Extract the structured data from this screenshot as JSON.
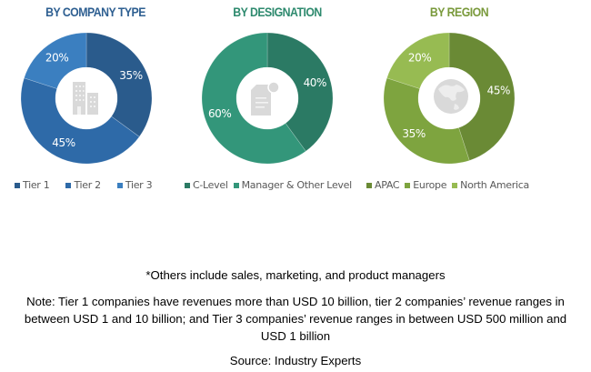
{
  "chart_data": [
    {
      "type": "pie",
      "variant": "donut",
      "title": "BY COMPANY TYPE",
      "categories": [
        "Tier 1",
        "Tier 2",
        "Tier 3"
      ],
      "values": [
        35,
        45,
        20
      ],
      "labels": [
        "35%",
        "45%",
        "20%"
      ],
      "colors": [
        "#2a5b8c",
        "#2e6aa8",
        "#3b7fc0"
      ],
      "title_color": "#2e5f91",
      "center_icon": "building-icon",
      "legend_position": "bottom"
    },
    {
      "type": "pie",
      "variant": "donut",
      "title": "BY DESIGNATION",
      "categories": [
        "C-Level",
        "Manager & Other Level"
      ],
      "values": [
        40,
        60
      ],
      "labels": [
        "40%",
        "60%"
      ],
      "colors": [
        "#2b7a64",
        "#33967a"
      ],
      "title_color": "#2e8a6e",
      "center_icon": "document-icon",
      "legend_position": "bottom"
    },
    {
      "type": "pie",
      "variant": "donut",
      "title": "BY REGION",
      "categories": [
        "APAC",
        "Europe",
        "North America"
      ],
      "values": [
        45,
        35,
        20
      ],
      "labels": [
        "45%",
        "35%",
        "20%"
      ],
      "colors": [
        "#6a8a35",
        "#7ea43f",
        "#97bb52"
      ],
      "title_color": "#7a9a3c",
      "center_icon": "globe-icon",
      "legend_position": "bottom"
    }
  ],
  "notes": {
    "others": "*Others include sales, marketing, and product managers",
    "tier_note_line1": "Note: Tier 1 companies have revenues more than USD 10 billion, tier 2 companies’ revenue ranges in",
    "tier_note_line2": "between USD 1 and 10 billion; and Tier 3 companies’ revenue ranges in between USD 500 million and",
    "tier_note_line3": "USD 1 billion",
    "source": "Source: Industry Experts"
  }
}
